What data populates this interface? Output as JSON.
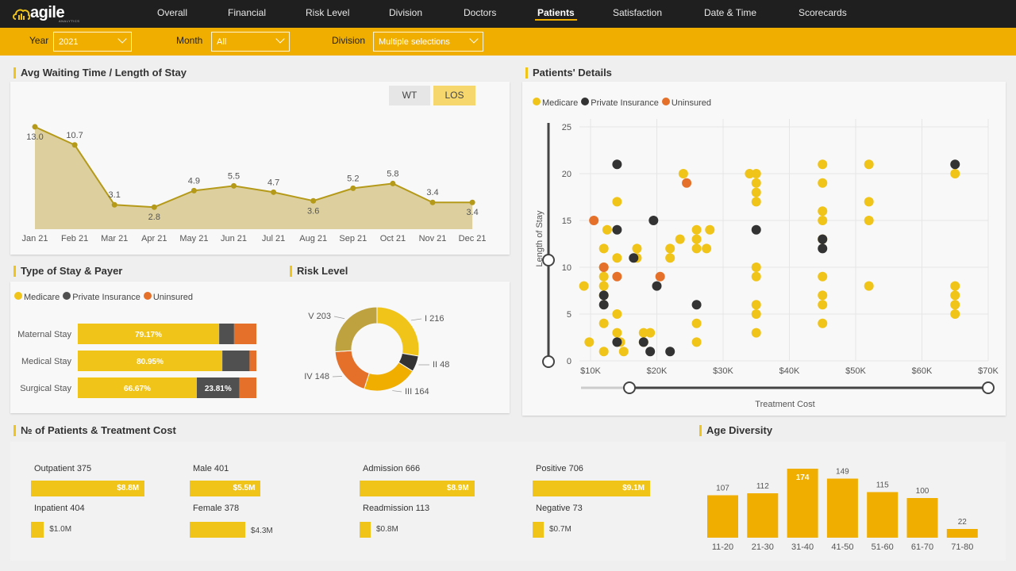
{
  "app": {
    "logo_text": "agile",
    "logo_sub": "ANALYTICS"
  },
  "nav": [
    "Overall",
    "Financial",
    "Risk Level",
    "Division",
    "Doctors",
    "Patients",
    "Satisfaction",
    "Date & Time",
    "Scorecards"
  ],
  "nav_active": "Patients",
  "filters": {
    "year_label": "Year",
    "year_value": "2021",
    "month_label": "Month",
    "month_value": "All",
    "division_label": "Division",
    "division_value": "Multiple selections"
  },
  "avg_wait": {
    "title": "Avg Waiting Time / Length of Stay",
    "toggle_wt": "WT",
    "toggle_los": "LOS",
    "toggle_active": "LOS"
  },
  "type_of_stay": {
    "title": "Type of Stay & Payer"
  },
  "risk_level": {
    "title": "Risk Level"
  },
  "patients_details": {
    "title": "Patients' Details"
  },
  "patients_cost": {
    "title": "№ of Patients & Treatment Cost",
    "groups": [
      {
        "label1": "Outpatient",
        "count1": "375",
        "value1": "$8.8M",
        "label2": "Inpatient",
        "count2": "404",
        "value2": "$1.0M"
      },
      {
        "label1": "Male",
        "count1": "401",
        "value1": "$5.5M",
        "label2": "Female",
        "count2": "378",
        "value2": "$4.3M"
      },
      {
        "label1": "Admission",
        "count1": "666",
        "value1": "$8.9M",
        "label2": "Readmission",
        "count2": "113",
        "value2": "$0.8M"
      },
      {
        "label1": "Positive",
        "count1": "706",
        "value1": "$9.1M",
        "label2": "Negative",
        "count2": "73",
        "value2": "$0.7M"
      }
    ]
  },
  "age_diversity": {
    "title": "Age Diversity"
  },
  "colors": {
    "accent": "#f0ae00",
    "medicare": "#f0c419",
    "private": "#505050",
    "uninsured": "#e5702a",
    "area": "#d8c98e",
    "line": "#b59a1a"
  },
  "chart_data": [
    {
      "id": "los",
      "type": "area",
      "categories": [
        "Jan 21",
        "Feb 21",
        "Mar 21",
        "Apr 21",
        "May 21",
        "Jun 21",
        "Jul 21",
        "Aug 21",
        "Sep 21",
        "Oct 21",
        "Nov 21",
        "Dec 21"
      ],
      "values": [
        13.0,
        10.7,
        3.1,
        2.8,
        4.9,
        5.5,
        4.7,
        3.6,
        5.2,
        5.8,
        3.4,
        3.4
      ],
      "data_labels": [
        "13.0",
        "10.7",
        "3.1",
        "2.8",
        "4.9",
        "5.5",
        "4.7",
        "3.6",
        "5.2",
        "5.8",
        "3.4",
        "3.4"
      ],
      "ylim": [
        0,
        14
      ]
    },
    {
      "id": "stay",
      "type": "bar",
      "orientation": "horizontal",
      "stacked": "100%",
      "legend": [
        "Medicare",
        "Private Insurance",
        "Uninsured"
      ],
      "categories": [
        "Maternal Stay",
        "Medical Stay",
        "Surgical Stay"
      ],
      "series": [
        {
          "name": "Medicare",
          "values": [
            79.17,
            80.95,
            66.67
          ]
        },
        {
          "name": "Private Insurance",
          "values": [
            8.33,
            15.24,
            23.81
          ]
        },
        {
          "name": "Uninsured",
          "values": [
            12.5,
            3.81,
            9.52
          ]
        }
      ],
      "value_labels": [
        [
          "79.17%",
          "",
          ""
        ],
        [
          "80.95%",
          "",
          ""
        ],
        [
          "66.67%",
          "23.81%",
          ""
        ]
      ]
    },
    {
      "id": "risk",
      "type": "pie",
      "donut": true,
      "labels": [
        "I",
        "II",
        "III",
        "IV",
        "V"
      ],
      "values": [
        216,
        48,
        164,
        148,
        203
      ],
      "colors": [
        "#f0c419",
        "#333333",
        "#f0ae00",
        "#e5702a",
        "#bfa240"
      ]
    },
    {
      "id": "scatter",
      "type": "scatter",
      "xlabel": "Treatment Cost",
      "ylabel": "Length of Stay",
      "xlim": [
        10000,
        70000
      ],
      "ylim": [
        0,
        25
      ],
      "xticks": [
        "$10K",
        "$20K",
        "$30K",
        "$40K",
        "$50K",
        "$60K",
        "$70K"
      ],
      "yticks": [
        "0",
        "5",
        "10",
        "15",
        "20",
        "25"
      ],
      "legend": [
        "Medicare",
        "Private Insurance",
        "Uninsured"
      ],
      "series": [
        {
          "name": "Medicare",
          "points": [
            [
              9000,
              8
            ],
            [
              9800,
              2
            ],
            [
              12000,
              12
            ],
            [
              12000,
              10
            ],
            [
              12000,
              9
            ],
            [
              12000,
              8
            ],
            [
              12000,
              7
            ],
            [
              12000,
              4
            ],
            [
              12000,
              1
            ],
            [
              12500,
              14
            ],
            [
              14000,
              11
            ],
            [
              14000,
              5
            ],
            [
              14000,
              3
            ],
            [
              14000,
              17
            ],
            [
              14500,
              2
            ],
            [
              15000,
              1
            ],
            [
              17000,
              12
            ],
            [
              17000,
              11
            ],
            [
              18000,
              3
            ],
            [
              18000,
              2
            ],
            [
              19000,
              3
            ],
            [
              22000,
              12
            ],
            [
              22000,
              11
            ],
            [
              23500,
              13
            ],
            [
              24000,
              20
            ],
            [
              26000,
              14
            ],
            [
              26000,
              13
            ],
            [
              26000,
              12
            ],
            [
              26000,
              4
            ],
            [
              26000,
              2
            ],
            [
              27500,
              12
            ],
            [
              28000,
              14
            ],
            [
              34000,
              20
            ],
            [
              35000,
              20
            ],
            [
              35000,
              19
            ],
            [
              35000,
              18
            ],
            [
              35000,
              17
            ],
            [
              35000,
              10
            ],
            [
              35000,
              9
            ],
            [
              35000,
              6
            ],
            [
              35000,
              5
            ],
            [
              35000,
              3
            ],
            [
              45000,
              21
            ],
            [
              45000,
              19
            ],
            [
              45000,
              16
            ],
            [
              45000,
              15
            ],
            [
              45000,
              13
            ],
            [
              45000,
              9
            ],
            [
              45000,
              7
            ],
            [
              45000,
              6
            ],
            [
              45000,
              4
            ],
            [
              52000,
              21
            ],
            [
              52000,
              17
            ],
            [
              52000,
              15
            ],
            [
              52000,
              8
            ],
            [
              65000,
              20
            ],
            [
              65000,
              8
            ],
            [
              65000,
              7
            ],
            [
              65000,
              6
            ],
            [
              65000,
              5
            ]
          ]
        },
        {
          "name": "Private Insurance",
          "points": [
            [
              12000,
              7
            ],
            [
              12000,
              6
            ],
            [
              14000,
              21
            ],
            [
              14000,
              14
            ],
            [
              14000,
              2
            ],
            [
              16500,
              11
            ],
            [
              18000,
              2
            ],
            [
              19000,
              1
            ],
            [
              19500,
              15
            ],
            [
              20000,
              8
            ],
            [
              22000,
              1
            ],
            [
              26000,
              6
            ],
            [
              35000,
              14
            ],
            [
              45000,
              13
            ],
            [
              45000,
              12
            ],
            [
              65000,
              21
            ]
          ]
        },
        {
          "name": "Uninsured",
          "points": [
            [
              10500,
              15
            ],
            [
              12000,
              10
            ],
            [
              14000,
              9
            ],
            [
              20500,
              9
            ],
            [
              24500,
              19
            ]
          ]
        }
      ]
    },
    {
      "id": "age",
      "type": "bar",
      "categories": [
        "11-20",
        "21-30",
        "31-40",
        "41-50",
        "51-60",
        "61-70",
        "71-80"
      ],
      "values": [
        107,
        112,
        174,
        149,
        115,
        100,
        22
      ],
      "data_labels": [
        "107",
        "112",
        "174",
        "149",
        "115",
        "100",
        "22"
      ],
      "ylim": [
        0,
        180
      ]
    }
  ]
}
